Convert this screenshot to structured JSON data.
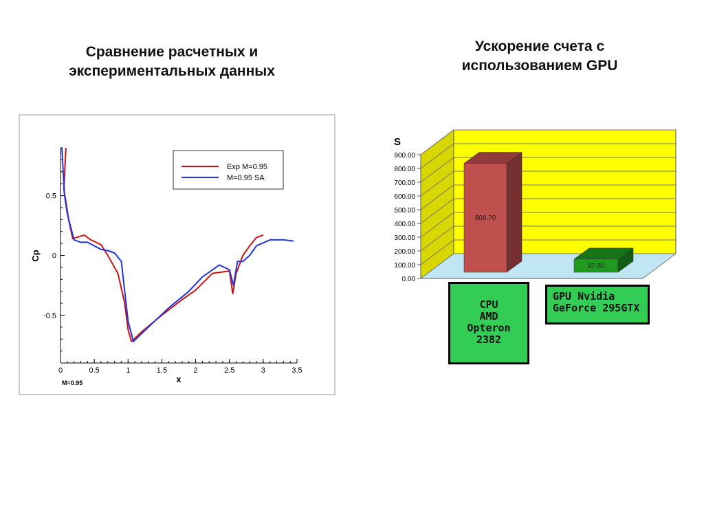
{
  "titles": {
    "left": [
      "Сравнение расчетных и",
      "экспериментальных данных"
    ],
    "right": [
      "Ускорение счета с",
      "использованием GPU"
    ]
  },
  "chart_data": [
    {
      "type": "line",
      "xlabel": "x",
      "ylabel": "Cp",
      "footnote": "M=0.95",
      "xlim": [
        0,
        3.5
      ],
      "ylim": [
        -0.9,
        0.9
      ],
      "xticks": [
        0,
        0.5,
        1,
        1.5,
        2,
        2.5,
        3,
        3.5
      ],
      "xtick_labels": [
        "0",
        "0.5",
        "1",
        "1.5",
        "2",
        "2.5",
        "3",
        "3.5"
      ],
      "yticks": [
        0.5,
        0,
        -0.5
      ],
      "ytick_labels": [
        "0.5",
        "0",
        "-0.5"
      ],
      "legend_position": "top-right",
      "series": [
        {
          "name": "Exp M=0.95",
          "color": "#cc1111",
          "points": [
            [
              0.08,
              0.9
            ],
            [
              0.05,
              0.55
            ],
            [
              0.08,
              0.45
            ],
            [
              0.12,
              0.3
            ],
            [
              0.18,
              0.14
            ],
            [
              0.35,
              0.17
            ],
            [
              0.45,
              0.13
            ],
            [
              0.6,
              0.09
            ],
            [
              0.7,
              0.0
            ],
            [
              0.85,
              -0.15
            ],
            [
              0.95,
              -0.4
            ],
            [
              1.0,
              -0.62
            ],
            [
              1.05,
              -0.72
            ],
            [
              1.2,
              -0.64
            ],
            [
              1.5,
              -0.5
            ],
            [
              1.8,
              -0.37
            ],
            [
              2.0,
              -0.29
            ],
            [
              2.25,
              -0.15
            ],
            [
              2.5,
              -0.13
            ],
            [
              2.55,
              -0.32
            ],
            [
              2.6,
              -0.15
            ],
            [
              2.7,
              0.0
            ],
            [
              2.8,
              0.08
            ],
            [
              2.9,
              0.15
            ],
            [
              3.0,
              0.17
            ]
          ]
        },
        {
          "name": "M=0.95 SA",
          "color": "#2233dd",
          "points": [
            [
              0.02,
              0.9
            ],
            [
              0.04,
              0.7
            ],
            [
              0.06,
              0.5
            ],
            [
              0.1,
              0.35
            ],
            [
              0.2,
              0.13
            ],
            [
              0.3,
              0.11
            ],
            [
              0.4,
              0.11
            ],
            [
              0.5,
              0.08
            ],
            [
              0.6,
              0.05
            ],
            [
              0.7,
              0.04
            ],
            [
              0.8,
              0.02
            ],
            [
              0.9,
              -0.05
            ],
            [
              0.95,
              -0.3
            ],
            [
              1.0,
              -0.55
            ],
            [
              1.08,
              -0.72
            ],
            [
              1.3,
              -0.6
            ],
            [
              1.6,
              -0.44
            ],
            [
              1.9,
              -0.3
            ],
            [
              2.1,
              -0.18
            ],
            [
              2.35,
              -0.08
            ],
            [
              2.5,
              -0.12
            ],
            [
              2.56,
              -0.25
            ],
            [
              2.62,
              -0.05
            ],
            [
              2.7,
              -0.05
            ],
            [
              2.8,
              0.0
            ],
            [
              2.9,
              0.08
            ],
            [
              3.1,
              0.13
            ],
            [
              3.3,
              0.13
            ],
            [
              3.45,
              0.12
            ]
          ]
        }
      ]
    },
    {
      "type": "bar",
      "ylabel": "S",
      "ylim": [
        0,
        900
      ],
      "yticks": [
        0,
        100,
        200,
        300,
        400,
        500,
        600,
        700,
        800,
        900
      ],
      "ytick_labels": [
        "0.00",
        "100.00",
        "200.00",
        "300.00",
        "400.00",
        "500.00",
        "600.00",
        "700.00",
        "800.00",
        "900.00"
      ],
      "categories": [
        "CPU AMD Opteron 2382",
        "GPU Nvidia GeForce 295GTX"
      ],
      "category_lines": [
        [
          "CPU",
          "AMD",
          "Opteron",
          "2382"
        ],
        [
          "GPU Nvidia",
          "GeForce 295GTX"
        ]
      ],
      "values": [
        808.7,
        97.8
      ],
      "value_labels": [
        "808.70",
        "97.80"
      ],
      "colors": [
        "#c0504d",
        "#1f9a1f"
      ],
      "wall_color": "#ffff00",
      "floor_color": "#bfe6f2"
    }
  ]
}
